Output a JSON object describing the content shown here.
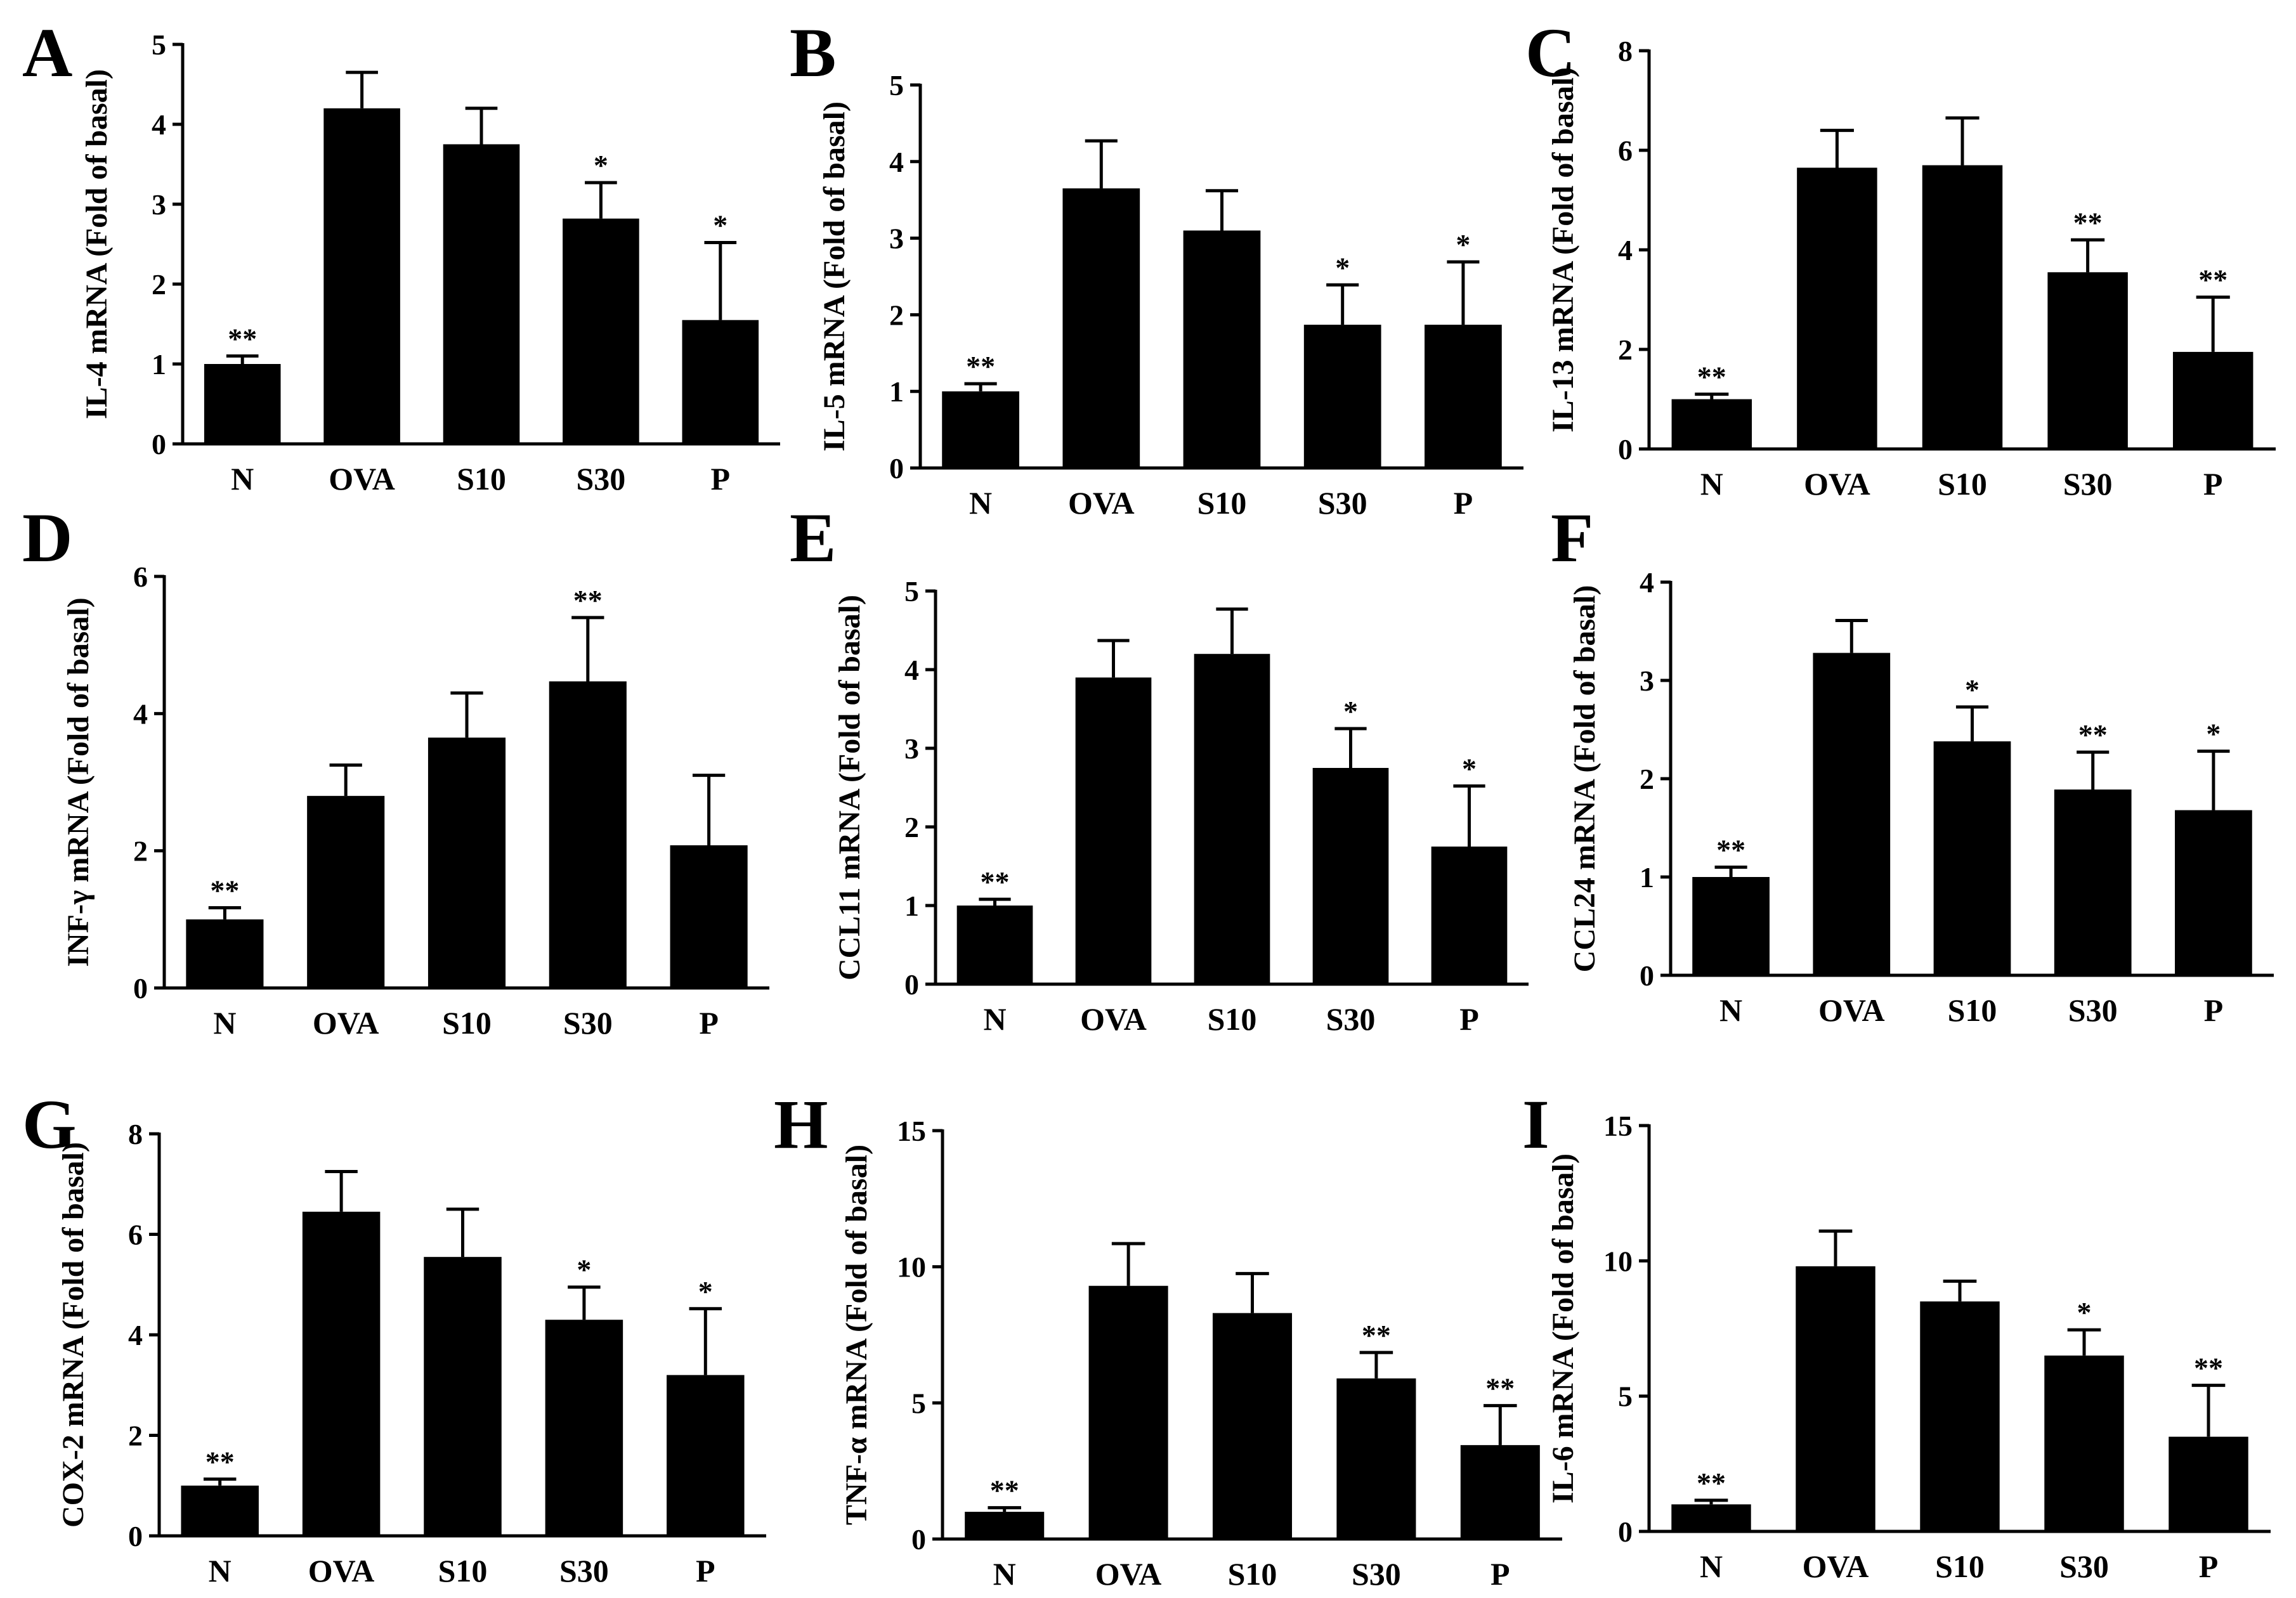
{
  "chart_data": [
    {
      "panel": "A",
      "type": "bar",
      "ylabel": "IL-4 mRNA (Fold of basal)",
      "categories": [
        "N",
        "OVA",
        "S10",
        "S30",
        "P"
      ],
      "values": [
        1.0,
        4.2,
        3.75,
        2.82,
        1.55
      ],
      "errors": [
        0.1,
        0.45,
        0.45,
        0.45,
        0.97
      ],
      "significance": [
        "**",
        "",
        "",
        "*",
        "*"
      ],
      "ylim": [
        0,
        5
      ],
      "yticks": [
        "0",
        "1",
        "2",
        "3",
        "4",
        "5"
      ],
      "tick_values": [
        0,
        1,
        2,
        3,
        4,
        5
      ]
    },
    {
      "panel": "B",
      "type": "bar",
      "ylabel": "IL-5 mRNA (Fold of basal)",
      "categories": [
        "N",
        "OVA",
        "S10",
        "S30",
        "P"
      ],
      "values": [
        1.0,
        3.65,
        3.1,
        1.87,
        1.87
      ],
      "errors": [
        0.1,
        0.62,
        0.52,
        0.52,
        0.82
      ],
      "significance": [
        "**",
        "",
        "",
        "*",
        "*"
      ],
      "ylim": [
        0,
        5
      ],
      "yticks": [
        "0",
        "1",
        "2",
        "3",
        "4",
        "5"
      ],
      "tick_values": [
        0,
        1,
        2,
        3,
        4,
        5
      ]
    },
    {
      "panel": "C",
      "type": "bar",
      "ylabel": "IL-13 mRNA (Fold of basal)",
      "categories": [
        "N",
        "OVA",
        "S10",
        "S30",
        "P"
      ],
      "values": [
        1.0,
        5.65,
        5.7,
        3.55,
        1.95
      ],
      "errors": [
        0.1,
        0.75,
        0.95,
        0.65,
        1.1
      ],
      "significance": [
        "**",
        "",
        "",
        "**",
        "**"
      ],
      "ylim": [
        0,
        8
      ],
      "yticks": [
        "0",
        "2",
        "4",
        "6",
        "8"
      ],
      "tick_values": [
        0,
        2,
        4,
        6,
        8
      ]
    },
    {
      "panel": "D",
      "type": "bar",
      "ylabel": "INF-γ mRNA (Fold of basal)",
      "categories": [
        "N",
        "OVA",
        "S10",
        "S30",
        "P"
      ],
      "values": [
        1.0,
        2.8,
        3.65,
        4.47,
        2.08
      ],
      "errors": [
        0.17,
        0.45,
        0.65,
        0.93,
        1.02
      ],
      "significance": [
        "**",
        "",
        "",
        "**",
        ""
      ],
      "ylim": [
        0,
        6
      ],
      "yticks": [
        "0",
        "2",
        "4",
        "6"
      ],
      "tick_values": [
        0,
        2,
        4,
        6
      ]
    },
    {
      "panel": "E",
      "type": "bar",
      "ylabel": "CCL11 mRNA (Fold of basal)",
      "categories": [
        "N",
        "OVA",
        "S10",
        "S30",
        "P"
      ],
      "values": [
        1.0,
        3.9,
        4.2,
        2.75,
        1.75
      ],
      "errors": [
        0.08,
        0.47,
        0.57,
        0.5,
        0.77
      ],
      "significance": [
        "**",
        "",
        "",
        "*",
        "*"
      ],
      "ylim": [
        0,
        5
      ],
      "yticks": [
        "0",
        "1",
        "2",
        "3",
        "4",
        "5"
      ],
      "tick_values": [
        0,
        1,
        2,
        3,
        4,
        5
      ]
    },
    {
      "panel": "F",
      "type": "bar",
      "ylabel": "CCL24 mRNA (Fold of basal)",
      "categories": [
        "N",
        "OVA",
        "S10",
        "S30",
        "P"
      ],
      "values": [
        1.0,
        3.28,
        2.38,
        1.89,
        1.68
      ],
      "errors": [
        0.1,
        0.33,
        0.35,
        0.38,
        0.6
      ],
      "significance": [
        "**",
        "",
        "*",
        "**",
        "*"
      ],
      "ylim": [
        0,
        4
      ],
      "yticks": [
        "0",
        "1",
        "2",
        "3",
        "4"
      ],
      "tick_values": [
        0,
        1,
        2,
        3,
        4
      ]
    },
    {
      "panel": "G",
      "type": "bar",
      "ylabel": "COX-2 mRNA (Fold of basal)",
      "categories": [
        "N",
        "OVA",
        "S10",
        "S30",
        "P"
      ],
      "values": [
        1.0,
        6.45,
        5.55,
        4.3,
        3.2
      ],
      "errors": [
        0.13,
        0.8,
        0.95,
        0.65,
        1.32
      ],
      "significance": [
        "**",
        "",
        "",
        "*",
        "*"
      ],
      "ylim": [
        0,
        8
      ],
      "yticks": [
        "0",
        "2",
        "4",
        "6",
        "8"
      ],
      "tick_values": [
        0,
        2,
        4,
        6,
        8
      ]
    },
    {
      "panel": "H",
      "type": "bar",
      "ylabel": "TNF-α mRNA (Fold of basal)",
      "categories": [
        "N",
        "OVA",
        "S10",
        "S30",
        "P"
      ],
      "values": [
        1.0,
        9.3,
        8.3,
        5.9,
        3.45
      ],
      "errors": [
        0.15,
        1.55,
        1.45,
        0.95,
        1.45
      ],
      "significance": [
        "**",
        "",
        "",
        "**",
        "**"
      ],
      "ylim": [
        0,
        15
      ],
      "yticks": [
        "0",
        "5",
        "10",
        "15"
      ],
      "tick_values": [
        0,
        5,
        10,
        15
      ]
    },
    {
      "panel": "I",
      "type": "bar",
      "ylabel": "IL-6 mRNA (Fold of basal)",
      "categories": [
        "N",
        "OVA",
        "S10",
        "S30",
        "P"
      ],
      "values": [
        1.0,
        9.8,
        8.5,
        6.5,
        3.5
      ],
      "errors": [
        0.15,
        1.3,
        0.75,
        0.95,
        1.9
      ],
      "significance": [
        "**",
        "",
        "",
        "*",
        "**"
      ],
      "ylim": [
        0,
        15
      ],
      "yticks": [
        "0",
        "5",
        "10",
        "15"
      ],
      "tick_values": [
        0,
        5,
        10,
        15
      ]
    }
  ]
}
